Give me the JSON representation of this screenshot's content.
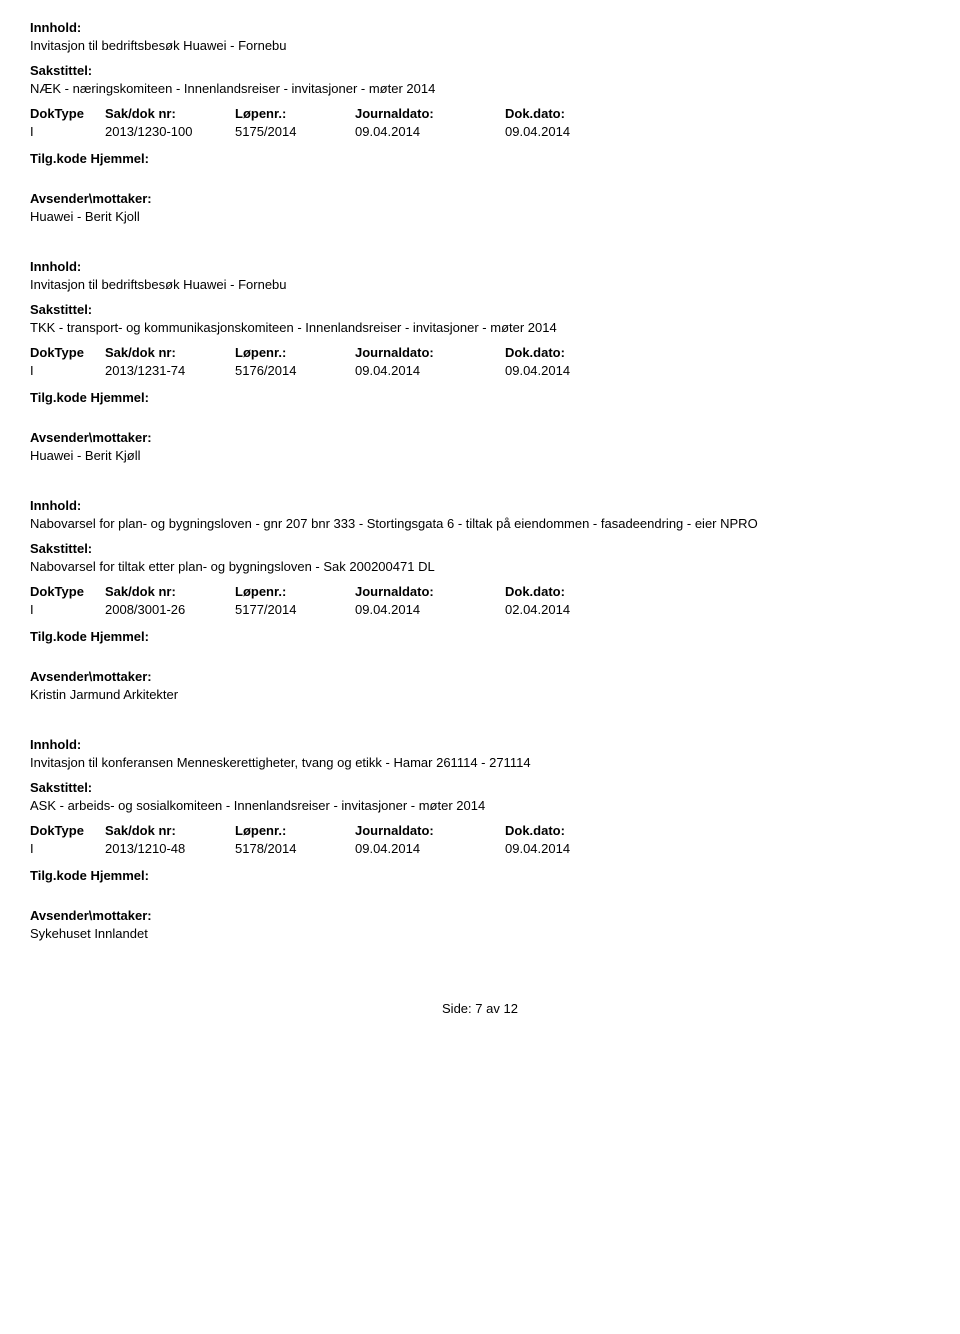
{
  "labels": {
    "innhold": "Innhold:",
    "sakstittel": "Sakstittel:",
    "doktype": "DokType",
    "sakdoknr": "Sak/dok nr:",
    "lopenr": "Løpenr.:",
    "journaldato": "Journaldato:",
    "dokdato": "Dok.dato:",
    "tilgkode": "Tilg.kode",
    "hjemmel": "Hjemmel:",
    "avsender": "Avsender\\mottaker:"
  },
  "entries": [
    {
      "innhold": "Invitasjon til bedriftsbesøk Huawei - Fornebu",
      "sakstittel": "NÆK - næringskomiteen - Innenlandsreiser - invitasjoner - møter 2014",
      "doktype": "I",
      "sakdok": "2013/1230-100",
      "lopenr": "5175/2014",
      "journaldato": "09.04.2014",
      "dokdato": "09.04.2014",
      "avsender": "Huawei - Berit Kjoll"
    },
    {
      "innhold": "Invitasjon til bedriftsbesøk Huawei - Fornebu",
      "sakstittel": "TKK - transport- og kommunikasjonskomiteen - Innenlandsreiser - invitasjoner - møter 2014",
      "doktype": "I",
      "sakdok": "2013/1231-74",
      "lopenr": "5176/2014",
      "journaldato": "09.04.2014",
      "dokdato": "09.04.2014",
      "avsender": "Huawei - Berit Kjøll"
    },
    {
      "innhold": "Nabovarsel for plan- og bygningsloven - gnr 207 bnr 333 - Stortingsgata 6 - tiltak på eiendommen - fasadeendring - eier NPRO",
      "sakstittel": "Nabovarsel for tiltak etter plan- og bygningsloven - Sak 200200471 DL",
      "doktype": "I",
      "sakdok": "2008/3001-26",
      "lopenr": "5177/2014",
      "journaldato": "09.04.2014",
      "dokdato": "02.04.2014",
      "avsender": "Kristin Jarmund Arkitekter"
    },
    {
      "innhold": "Invitasjon til konferansen Menneskerettigheter, tvang og etikk - Hamar 261114 - 271114",
      "sakstittel": "ASK - arbeids- og sosialkomiteen - Innenlandsreiser - invitasjoner - møter 2014",
      "doktype": "I",
      "sakdok": "2013/1210-48",
      "lopenr": "5178/2014",
      "journaldato": "09.04.2014",
      "dokdato": "09.04.2014",
      "avsender": "Sykehuset Innlandet"
    }
  ],
  "footer": {
    "prefix": "Side:",
    "current": "7",
    "separator": "av",
    "total": "12"
  }
}
